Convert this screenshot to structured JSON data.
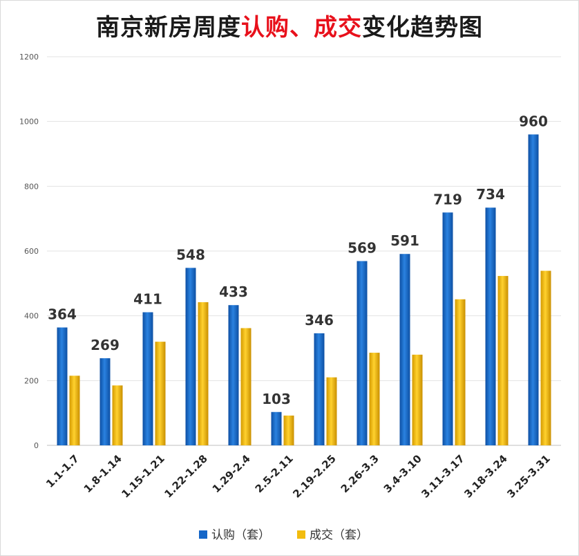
{
  "chart_data": {
    "type": "bar",
    "title": {
      "part1": "南京新房周度",
      "part2": "认购、成交",
      "part3": "变化趋势图"
    },
    "categories": [
      "1.1-1.7",
      "1.8-1.14",
      "1.15-1.21",
      "1.22-1.28",
      "1.29-2.4",
      "2.5-2.11",
      "2.19-2.25",
      "2.26-3.3",
      "3.4-3.10",
      "3.11-3.17",
      "3.18-3.24",
      "3.25-3.31"
    ],
    "series": [
      {
        "name": "认购（套）",
        "values": [
          364,
          269,
          411,
          548,
          433,
          103,
          346,
          569,
          591,
          719,
          734,
          960
        ],
        "color": "#1466c8"
      },
      {
        "name": "成交（套）",
        "values": [
          215,
          185,
          320,
          442,
          362,
          92,
          210,
          286,
          280,
          451,
          523,
          539
        ],
        "color": "#f2bc0e"
      }
    ],
    "ylim": [
      0,
      1200
    ],
    "yticks": [
      0,
      200,
      400,
      600,
      800,
      1000,
      1200
    ],
    "grid": true,
    "legend_position": "bottom",
    "data_labels_series": 0
  }
}
